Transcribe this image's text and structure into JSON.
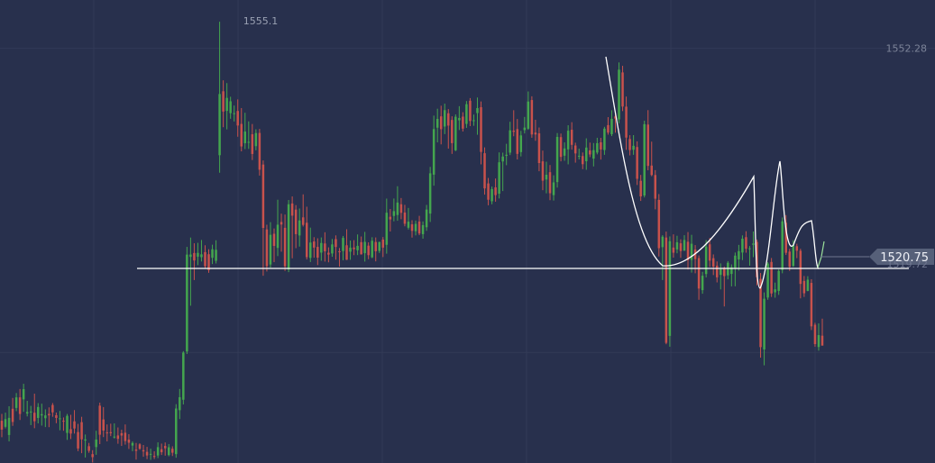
{
  "chart_data": {
    "type": "candlestick",
    "title": "",
    "xlabel": "",
    "ylabel": "",
    "ylim": [
      1508.3,
      1557.4
    ],
    "grid": true,
    "price_tick_labels": [
      "1552.28"
    ],
    "high_marker_label": "1555.1",
    "high_marker_value": 1555.1,
    "current_price_label": "1520.75",
    "current_price_value": 1520.75,
    "support_level_label": "1519.72",
    "support_level_value": 1519.72,
    "candles": [
      [
        1512.78,
        1511.84,
        1513.51,
        1511.03
      ],
      [
        1512.14,
        1512.95,
        1513.64,
        1511.97
      ],
      [
        1511.27,
        1513.09,
        1514.32,
        1510.59
      ],
      [
        1514.05,
        1512.65,
        1515.2,
        1512.24
      ],
      [
        1514.14,
        1515.26,
        1515.72,
        1513.8
      ],
      [
        1515.26,
        1513.5,
        1516.15,
        1512.86
      ],
      [
        1515.05,
        1516.13,
        1516.7,
        1513.73
      ],
      [
        1513.54,
        1513.71,
        1514.89,
        1513.24
      ],
      [
        1513.75,
        1513.76,
        1514.36,
        1512.32
      ],
      [
        1513.63,
        1512.73,
        1515.65,
        1511.99
      ],
      [
        1513.08,
        1514.24,
        1514.65,
        1512.5
      ],
      [
        1513.34,
        1513.48,
        1514.59,
        1512.27
      ],
      [
        1513.05,
        1513.35,
        1513.99,
        1512.11
      ],
      [
        1513.51,
        1513.35,
        1514.2,
        1512.1
      ],
      [
        1514.45,
        1513.67,
        1514.66,
        1513.2
      ],
      [
        1513.37,
        1513.08,
        1513.65,
        1512.52
      ],
      [
        1512.99,
        1513.04,
        1513.82,
        1511.77
      ],
      [
        1512.78,
        1512.76,
        1513.13,
        1511.72
      ],
      [
        1511.49,
        1513.3,
        1513.5,
        1510.75
      ],
      [
        1511.89,
        1511.42,
        1513.41,
        1510.84
      ],
      [
        1512.72,
        1511.96,
        1513.91,
        1511.42
      ],
      [
        1511.58,
        1509.84,
        1512.45,
        1509.56
      ],
      [
        1512.63,
        1510.81,
        1513.2,
        1509.34
      ],
      [
        1510.68,
        1510.8,
        1511.32,
        1508.88
      ],
      [
        1510.08,
        1509.59,
        1510.43,
        1509.38
      ],
      [
        1509.24,
        1508.92,
        1509.66,
        1508.35
      ],
      [
        1509.99,
        1510.79,
        1511.72,
        1509.17
      ],
      [
        1514.38,
        1511.3,
        1514.7,
        1510.3
      ],
      [
        1512.92,
        1511.74,
        1514.23,
        1511.05
      ],
      [
        1511.54,
        1511.47,
        1512.39,
        1510.59
      ],
      [
        1511.57,
        1511.46,
        1512.47,
        1511.15
      ],
      [
        1511.1,
        1511.1,
        1512.5,
        1510.9
      ],
      [
        1511.22,
        1510.86,
        1512.07,
        1510.34
      ],
      [
        1511.46,
        1511.21,
        1511.83,
        1510.11
      ],
      [
        1511.51,
        1510.63,
        1512.39,
        1510.25
      ],
      [
        1510.78,
        1510.45,
        1511.36,
        1509.79
      ],
      [
        1510.15,
        1510.42,
        1510.59,
        1509.55
      ],
      [
        1509.73,
        1509.59,
        1510.43,
        1508.66
      ],
      [
        1510.28,
        1509.81,
        1510.4,
        1509.7
      ],
      [
        1509.66,
        1509.53,
        1510.21,
        1508.96
      ],
      [
        1509.48,
        1509.1,
        1510.01,
        1508.71
      ],
      [
        1509.2,
        1509.27,
        1509.82,
        1508.63
      ],
      [
        1509.05,
        1508.94,
        1509.54,
        1508.72
      ],
      [
        1509.1,
        1509.98,
        1510.49,
        1508.82
      ],
      [
        1509.76,
        1509.44,
        1510.36,
        1509.15
      ],
      [
        1510.11,
        1509.86,
        1510.48,
        1509.08
      ],
      [
        1509.14,
        1509.97,
        1510.31,
        1509.01
      ],
      [
        1509.81,
        1509.39,
        1510.07,
        1509.04
      ],
      [
        1509.24,
        1514.08,
        1514.54,
        1508.86
      ],
      [
        1513.9,
        1515.28,
        1516.15,
        1512.96
      ],
      [
        1515.01,
        1520.01,
        1520.16,
        1514.51
      ],
      [
        1520.13,
        1530.4,
        1531.22,
        1519.86
      ],
      [
        1530.16,
        1530.41,
        1532.21,
        1524.98
      ],
      [
        1530.57,
        1529.78,
        1531.6,
        1527.7
      ],
      [
        1530.18,
        1530.58,
        1531.65,
        1529.28
      ],
      [
        1530.13,
        1530.43,
        1531.95,
        1529.67
      ],
      [
        1530.66,
        1529.17,
        1531.39,
        1528.93
      ],
      [
        1530.44,
        1528.75,
        1530.97,
        1528.47
      ],
      [
        1530.06,
        1530.96,
        1531.45,
        1529.4
      ],
      [
        1529.74,
        1530.91,
        1531.92,
        1529.46
      ],
      [
        1540.94,
        1547.43,
        1555.1,
        1539.08
      ],
      [
        1547.72,
        1545.57,
        1548.88,
        1543.91
      ],
      [
        1545.64,
        1547.02,
        1548.59,
        1543.68
      ],
      [
        1545.4,
        1546.66,
        1547.14,
        1544.8
      ],
      [
        1545.36,
        1545.4,
        1546.21,
        1544.52
      ],
      [
        1545.63,
        1544.09,
        1546.86,
        1542.9
      ],
      [
        1544.26,
        1541.87,
        1545.94,
        1541.35
      ],
      [
        1542.21,
        1543.45,
        1545.44,
        1541.59
      ],
      [
        1542.31,
        1542.36,
        1544.53,
        1541.61
      ],
      [
        1543.16,
        1541.07,
        1544.25,
        1540.43
      ],
      [
        1541.9,
        1543.29,
        1543.69,
        1541.46
      ],
      [
        1543.3,
        1539.4,
        1543.73,
        1538.78
      ],
      [
        1539.95,
        1533.23,
        1540.38,
        1528.16
      ],
      [
        1533.07,
        1529.18,
        1533.57,
        1528.61
      ],
      [
        1529.35,
        1532.5,
        1533.84,
        1529.02
      ],
      [
        1532.61,
        1531.32,
        1533.17,
        1529.6
      ],
      [
        1531.11,
        1533.57,
        1536.22,
        1530.24
      ],
      [
        1533.86,
        1533.59,
        1534.74,
        1530.71
      ],
      [
        1533.24,
        1529.16,
        1534.65,
        1528.67
      ],
      [
        1528.82,
        1535.74,
        1536.19,
        1528.54
      ],
      [
        1535.82,
        1534.53,
        1536.57,
        1530.01
      ],
      [
        1535.17,
        1532.57,
        1535.65,
        1531.08
      ],
      [
        1532.43,
        1534.02,
        1535.29,
        1531.25
      ],
      [
        1534.35,
        1533.55,
        1536.79,
        1533.38
      ],
      [
        1533.78,
        1530.13,
        1535.48,
        1529.88
      ],
      [
        1530.05,
        1531.68,
        1533.26,
        1529.61
      ],
      [
        1531.79,
        1531.14,
        1532.25,
        1530.07
      ],
      [
        1531.22,
        1530.08,
        1532.13,
        1529.29
      ],
      [
        1530.61,
        1531.63,
        1532.22,
        1529.75
      ],
      [
        1531.58,
        1530.75,
        1532.77,
        1529.66
      ],
      [
        1530.6,
        1530.4,
        1531.17,
        1529.58
      ],
      [
        1530.52,
        1531.48,
        1532.06,
        1530.17
      ],
      [
        1532.04,
        1531.21,
        1532.44,
        1529.86
      ],
      [
        1530.75,
        1530.65,
        1531.1,
        1529.13
      ],
      [
        1530.78,
        1532.17,
        1532.38,
        1529.8
      ],
      [
        1531.39,
        1529.85,
        1533.09,
        1529.83
      ],
      [
        1530.71,
        1531.14,
        1531.89,
        1529.85
      ],
      [
        1531.15,
        1530.97,
        1531.93,
        1530.34
      ],
      [
        1530.86,
        1531.33,
        1532.54,
        1530.35
      ],
      [
        1531.72,
        1530.43,
        1532.32,
        1530.4
      ],
      [
        1530.55,
        1531.75,
        1532.81,
        1529.66
      ],
      [
        1531.35,
        1530.34,
        1531.7,
        1529.91
      ],
      [
        1530.11,
        1531.87,
        1532.24,
        1530.02
      ],
      [
        1531.74,
        1530.76,
        1532.22,
        1529.68
      ],
      [
        1530.79,
        1531.74,
        1531.77,
        1530.57
      ],
      [
        1531.99,
        1531.14,
        1532.26,
        1530.14
      ],
      [
        1531.44,
        1534.84,
        1536.34,
        1530.5
      ],
      [
        1534.41,
        1534.13,
        1535.24,
        1532.85
      ],
      [
        1534.5,
        1535.01,
        1536.35,
        1533.93
      ],
      [
        1534.6,
        1535.92,
        1537.65,
        1533.99
      ],
      [
        1535.74,
        1534.83,
        1536.4,
        1534.15
      ],
      [
        1534.86,
        1533.67,
        1535.68,
        1533.4
      ],
      [
        1533.25,
        1533.89,
        1535.35,
        1533.06
      ],
      [
        1533.61,
        1532.92,
        1534.05,
        1532.21
      ],
      [
        1532.88,
        1533.66,
        1534.01,
        1532.44
      ],
      [
        1533.91,
        1532.64,
        1534.51,
        1532.46
      ],
      [
        1532.57,
        1533.53,
        1533.92,
        1532.09
      ],
      [
        1533.3,
        1535.18,
        1535.67,
        1532.92
      ],
      [
        1534.75,
        1539.02,
        1539.7,
        1533.86
      ],
      [
        1538.88,
        1543.71,
        1545.14,
        1537.71
      ],
      [
        1543.86,
        1544.79,
        1545.87,
        1542.3
      ],
      [
        1545.06,
        1543.7,
        1546.19,
        1542.09
      ],
      [
        1543.98,
        1545.72,
        1546.41,
        1543.18
      ],
      [
        1545.39,
        1544.08,
        1545.83,
        1541.64
      ],
      [
        1544.68,
        1542.22,
        1545.07,
        1541.08
      ],
      [
        1541.46,
        1545.02,
        1545.27,
        1541.37
      ],
      [
        1544.64,
        1544.89,
        1546.14,
        1543.61
      ],
      [
        1545.03,
        1543.76,
        1545.5,
        1543.45
      ],
      [
        1544.26,
        1546.35,
        1546.69,
        1543.84
      ],
      [
        1546.72,
        1544.57,
        1547.0,
        1544.03
      ],
      [
        1544.56,
        1544.65,
        1545.25,
        1544.06
      ],
      [
        1545.41,
        1545.94,
        1547.06,
        1543.11
      ],
      [
        1546.03,
        1541.29,
        1546.64,
        1539.97
      ],
      [
        1541.15,
        1537.42,
        1541.77,
        1536.76
      ],
      [
        1537.95,
        1536.22,
        1538.53,
        1535.63
      ],
      [
        1536.06,
        1537.35,
        1537.62,
        1535.74
      ],
      [
        1537.53,
        1536.71,
        1538.47,
        1536.01
      ],
      [
        1536.86,
        1540.19,
        1541.24,
        1536.35
      ],
      [
        1540.28,
        1540.8,
        1541.21,
        1537.14
      ],
      [
        1540.87,
        1540.99,
        1542.15,
        1539.88
      ],
      [
        1541.21,
        1543.58,
        1544.49,
        1540.95
      ],
      [
        1543.54,
        1543.42,
        1545.71,
        1542.95
      ],
      [
        1543.71,
        1541.08,
        1544.78,
        1540.49
      ],
      [
        1541.27,
        1543.04,
        1543.52,
        1540.81
      ],
      [
        1543.6,
        1543.87,
        1545.0,
        1543.25
      ],
      [
        1543.75,
        1546.63,
        1547.7,
        1543.63
      ],
      [
        1546.79,
        1543.14,
        1547.19,
        1542.79
      ],
      [
        1543.34,
        1543.14,
        1544.7,
        1542.47
      ],
      [
        1543.26,
        1540.11,
        1543.88,
        1539.24
      ],
      [
        1540.29,
        1538.24,
        1541.43,
        1537.23
      ],
      [
        1538.36,
        1538.87,
        1540.25,
        1536.9
      ],
      [
        1539.14,
        1536.91,
        1539.9,
        1536.17
      ],
      [
        1536.71,
        1538.06,
        1538.81,
        1536.13
      ],
      [
        1538.09,
        1542.88,
        1543.29,
        1537.51
      ],
      [
        1542.86,
        1540.76,
        1543.24,
        1540.29
      ],
      [
        1540.89,
        1541.66,
        1542.3,
        1540.35
      ],
      [
        1541.56,
        1543.54,
        1544.12,
        1539.97
      ],
      [
        1543.64,
        1542.04,
        1544.44,
        1541.53
      ],
      [
        1541.97,
        1541.13,
        1542.27,
        1540.15
      ],
      [
        1540.84,
        1540.88,
        1541.64,
        1540.49
      ],
      [
        1540.85,
        1539.99,
        1541.23,
        1539.46
      ],
      [
        1540.3,
        1541.75,
        1542.73,
        1539.39
      ],
      [
        1541.45,
        1541.02,
        1542.28,
        1540.74
      ],
      [
        1540.58,
        1541.48,
        1542.23,
        1539.75
      ],
      [
        1541.22,
        1542.22,
        1542.79,
        1541.03
      ],
      [
        1542.31,
        1541.55,
        1542.78,
        1540.48
      ],
      [
        1541.49,
        1543.76,
        1543.95,
        1540.98
      ],
      [
        1544.13,
        1543.34,
        1544.98,
        1543.12
      ],
      [
        1543.17,
        1544.8,
        1545.71,
        1542.97
      ],
      [
        1545.05,
        1544.82,
        1545.42,
        1543.33
      ],
      [
        1544.74,
        1550.01,
        1550.78,
        1544.33
      ],
      [
        1549.72,
        1546.1,
        1550.42,
        1545.62
      ],
      [
        1546.09,
        1542.81,
        1547.16,
        1541.51
      ],
      [
        1542.66,
        1541.49,
        1543.06,
        1540.92
      ],
      [
        1541.52,
        1541.94,
        1543.07,
        1540.98
      ],
      [
        1541.81,
        1538.44,
        1542.41,
        1537.78
      ],
      [
        1538.23,
        1536.57,
        1538.85,
        1536.09
      ],
      [
        1536.67,
        1544.23,
        1544.6,
        1536.46
      ],
      [
        1544.19,
        1539.81,
        1545.72,
        1539.34
      ],
      [
        1539.84,
        1538.84,
        1542.38,
        1538.71
      ],
      [
        1538.84,
        1536.33,
        1539.36,
        1535.2
      ],
      [
        1536.2,
        1531.08,
        1536.82,
        1530.2
      ],
      [
        1531.19,
        1532.3,
        1532.46,
        1527.7
      ],
      [
        1532.21,
        1521.04,
        1532.84,
        1520.89
      ],
      [
        1521.78,
        1531.82,
        1532.33,
        1520.63
      ],
      [
        1531.15,
        1530.6,
        1532.55,
        1530.08
      ],
      [
        1530.95,
        1531.71,
        1532.4,
        1530.54
      ],
      [
        1531.6,
        1530.78,
        1532.02,
        1530.06
      ],
      [
        1530.81,
        1531.95,
        1532.46,
        1531.21
      ],
      [
        1531.76,
        1529.82,
        1532.79,
        1528.82
      ],
      [
        1529.84,
        1531.55,
        1532.5,
        1528.49
      ],
      [
        1530.94,
        1529.92,
        1531.41,
        1528.42
      ],
      [
        1530.03,
        1526.8,
        1530.31,
        1525.61
      ],
      [
        1526.63,
        1528.16,
        1528.57,
        1526.25
      ],
      [
        1528.34,
        1531.25,
        1531.94,
        1527.98
      ],
      [
        1531.49,
        1529.76,
        1532.18,
        1529.09
      ],
      [
        1530.02,
        1529.13,
        1530.42,
        1528.23
      ],
      [
        1529.23,
        1527.99,
        1529.67,
        1527.45
      ],
      [
        1528.25,
        1528.87,
        1529.47,
        1526.71
      ],
      [
        1529.0,
        1528.12,
        1529.13,
        1524.9
      ],
      [
        1528.2,
        1529.53,
        1529.71,
        1527.78
      ],
      [
        1528.35,
        1529.06,
        1529.36,
        1527.03
      ],
      [
        1528.99,
        1530.29,
        1530.62,
        1527.04
      ],
      [
        1529.89,
        1530.77,
        1531.43,
        1528.7
      ],
      [
        1530.62,
        1532.09,
        1532.44,
        1529.82
      ],
      [
        1532.25,
        1531.02,
        1532.88,
        1530.6
      ],
      [
        1531.03,
        1531.07,
        1531.31,
        1529.23
      ],
      [
        1531.44,
        1531.58,
        1532.85,
        1530.13
      ],
      [
        1531.75,
        1528.0,
        1532.0,
        1527.14
      ],
      [
        1527.82,
        1520.59,
        1528.45,
        1519.47
      ],
      [
        1520.34,
        1525.72,
        1526.39,
        1518.66
      ],
      [
        1525.85,
        1529.45,
        1529.6,
        1525.61
      ],
      [
        1529.62,
        1526.28,
        1530.04,
        1525.91
      ],
      [
        1526.4,
        1526.72,
        1527.43,
        1525.83
      ],
      [
        1526.55,
        1528.67,
        1528.84,
        1526.13
      ],
      [
        1528.77,
        1533.93,
        1534.34,
        1528.42
      ],
      [
        1533.78,
        1530.59,
        1534.59,
        1530.36
      ],
      [
        1530.72,
        1529.1,
        1531.01,
        1528.67
      ],
      [
        1529.2,
        1531.4,
        1531.93,
        1529.09
      ],
      [
        1531.29,
        1530.81,
        1531.55,
        1530.03
      ],
      [
        1530.81,
        1527.29,
        1531.02,
        1525.76
      ],
      [
        1527.61,
        1526.3,
        1528.13,
        1525.91
      ],
      [
        1526.55,
        1527.74,
        1528.11,
        1526.51
      ],
      [
        1527.4,
        1522.79,
        1527.79,
        1522.4
      ],
      [
        1522.96,
        1520.91,
        1523.17,
        1520.63
      ],
      [
        1520.6,
        1521.86,
        1523.11,
        1520.21
      ],
      [
        1521.8,
        1520.75,
        1523.61,
        1520.75
      ]
    ],
    "series_colors": {
      "up": "#44a64e",
      "down": "#c8524c"
    }
  },
  "colors": {
    "background": "#28304d",
    "grid": "#323a57",
    "drawing_line": "#ffffff",
    "price_tag": "#566079",
    "price_tag_line": "#6f7690"
  }
}
